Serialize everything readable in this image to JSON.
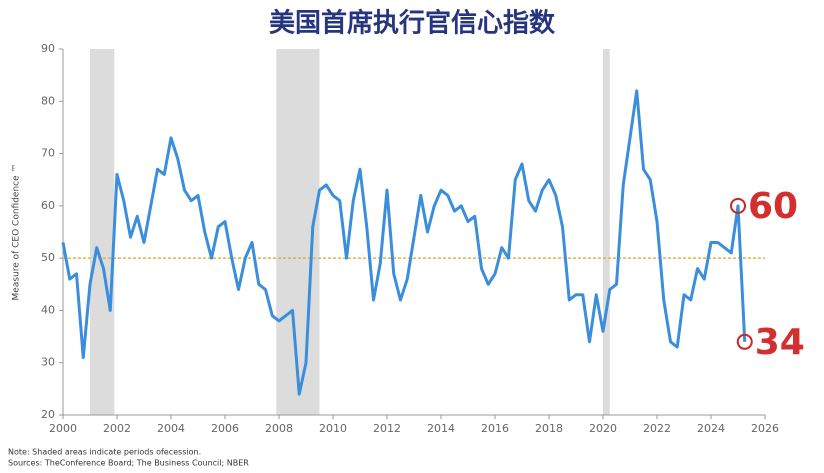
{
  "chart_data": {
    "type": "line",
    "title": "美国首席执行官信心指数",
    "y_label": "Measure of CEO Confidence ™",
    "notes": [
      "Note: Shaded areas indicate periods ofecession.",
      "Sources: TheConference Board; The Business Council; NBER"
    ],
    "x": [
      2000,
      2000.25,
      2000.5,
      2000.75,
      2001,
      2001.25,
      2001.5,
      2001.75,
      2002,
      2002.25,
      2002.5,
      2002.75,
      2003,
      2003.25,
      2003.5,
      2003.75,
      2004,
      2004.25,
      2004.5,
      2004.75,
      2005,
      2005.25,
      2005.5,
      2005.75,
      2006,
      2006.25,
      2006.5,
      2006.75,
      2007,
      2007.25,
      2007.5,
      2007.75,
      2008,
      2008.25,
      2008.5,
      2008.75,
      2009,
      2009.25,
      2009.5,
      2009.75,
      2010,
      2010.25,
      2010.5,
      2010.75,
      2011,
      2011.25,
      2011.5,
      2011.75,
      2012,
      2012.25,
      2012.5,
      2012.75,
      2013,
      2013.25,
      2013.5,
      2013.75,
      2014,
      2014.25,
      2014.5,
      2014.75,
      2015,
      2015.25,
      2015.5,
      2015.75,
      2016,
      2016.25,
      2016.5,
      2016.75,
      2017,
      2017.25,
      2017.5,
      2017.75,
      2018,
      2018.25,
      2018.5,
      2018.75,
      2019,
      2019.25,
      2019.5,
      2019.75,
      2020,
      2020.25,
      2020.5,
      2020.75,
      2021,
      2021.25,
      2021.5,
      2021.75,
      2022,
      2022.25,
      2022.5,
      2022.75,
      2023,
      2023.25,
      2023.5,
      2023.75,
      2024,
      2024.25,
      2024.5,
      2024.75,
      2025,
      2025.25
    ],
    "series": [
      {
        "name": "CEO Confidence",
        "color": "#3b8edb",
        "values": [
          53,
          46,
          47,
          31,
          45,
          52,
          48,
          40,
          66,
          61,
          54,
          58,
          53,
          60,
          67,
          66,
          73,
          69,
          63,
          61,
          62,
          55,
          50,
          56,
          57,
          50,
          44,
          50,
          53,
          45,
          44,
          39,
          38,
          39,
          40,
          24,
          30,
          56,
          63,
          64,
          62,
          61,
          50,
          61,
          67,
          56,
          42,
          49,
          63,
          47,
          42,
          46,
          54,
          62,
          55,
          60,
          63,
          62,
          59,
          60,
          57,
          58,
          48,
          45,
          47,
          52,
          50,
          65,
          68,
          61,
          59,
          63,
          65,
          62,
          56,
          42,
          43,
          43,
          34,
          43,
          36,
          44,
          45,
          64,
          73,
          82,
          67,
          65,
          57,
          42,
          34,
          33,
          43,
          42,
          48,
          46,
          53,
          53,
          52,
          51,
          60,
          34
        ]
      }
    ],
    "xlim": [
      2000,
      2026
    ],
    "xticks": [
      2000,
      2002,
      2004,
      2006,
      2008,
      2010,
      2012,
      2014,
      2016,
      2018,
      2020,
      2022,
      2024,
      2026
    ],
    "ylim": [
      20,
      90
    ],
    "yticks": [
      20,
      30,
      40,
      50,
      60,
      70,
      80,
      90
    ],
    "shaded_periods": [
      [
        2001,
        2001.9
      ],
      [
        2007.9,
        2009.5
      ],
      [
        2020,
        2020.25
      ]
    ],
    "reference_line": 50,
    "annotations": [
      {
        "x": 2025,
        "y": 60,
        "label": "60"
      },
      {
        "x": 2025.25,
        "y": 34,
        "label": "34"
      }
    ]
  }
}
